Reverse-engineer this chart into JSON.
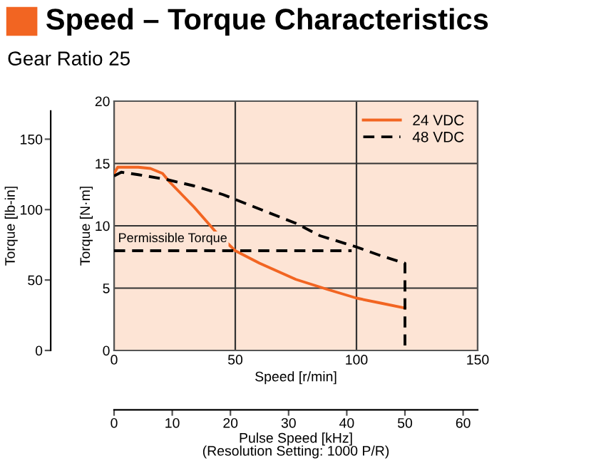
{
  "chart_data": {
    "type": "line",
    "title": "Speed – Torque Characteristics",
    "subtitle": "Gear Ratio 25",
    "xlabel": "Speed [r/min]",
    "ylabel": "Torque [N·m]",
    "y2label": "Torque [lb-in]",
    "x2label": "Pulse Speed [kHz]\n(Resolution Setting: 1000 P/R)",
    "xlim": [
      0,
      150
    ],
    "xticks": [
      0,
      50,
      100,
      150
    ],
    "ylim": [
      0,
      20
    ],
    "yticks": [
      0,
      5,
      10,
      15,
      20
    ],
    "y2lim": [
      0,
      177
    ],
    "y2ticks": [
      0,
      50,
      100,
      150
    ],
    "x2lim": [
      0,
      62.5
    ],
    "x2ticks": [
      0,
      10,
      20,
      30,
      40,
      50,
      60
    ],
    "grid": true,
    "legend": "top right",
    "series": [
      {
        "name": "24 VDC",
        "color": "#f26522",
        "line_style": "solid",
        "x": [
          0,
          1.5,
          10,
          15,
          20,
          23,
          28,
          33,
          42,
          50,
          60,
          75,
          88,
          100,
          110,
          120
        ],
        "values": [
          14.2,
          14.7,
          14.7,
          14.6,
          14.2,
          13.5,
          12.5,
          11.5,
          9.5,
          8,
          7,
          5.7,
          4.9,
          4.2,
          3.8,
          3.4
        ]
      },
      {
        "name": "48 VDC",
        "color": "#000000",
        "line_style": "dashed",
        "x": [
          0,
          3,
          10,
          22,
          33,
          45,
          58,
          75,
          85,
          100,
          110,
          120,
          120
        ],
        "values": [
          14,
          14.3,
          14.1,
          13.7,
          13.2,
          12.5,
          11.5,
          10.2,
          9.2,
          8.3,
          7.6,
          7,
          0
        ]
      },
      {
        "color": "#000000",
        "line_style": "dashed",
        "x": [
          0,
          98
        ],
        "values": [
          8,
          8
        ]
      }
    ],
    "annotations": [
      {
        "text": "Permissible Torque",
        "x": 0,
        "y": 8
      }
    ]
  }
}
